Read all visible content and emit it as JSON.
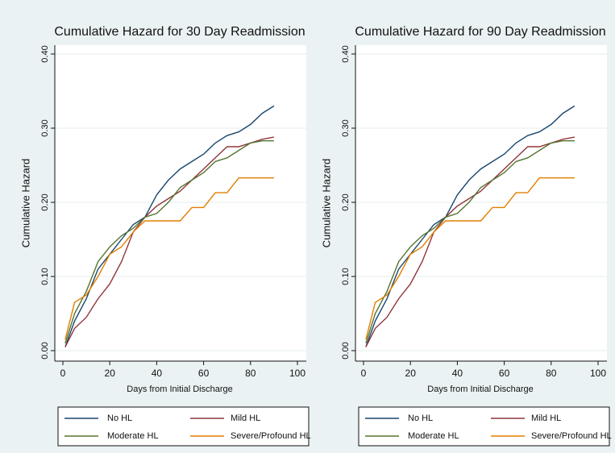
{
  "chart_data": [
    {
      "type": "line",
      "title": "Cumulative Hazard for 30 Day Readmission",
      "x_label": "Days from Initial Discharge",
      "y_label": "Cumulative Hazard",
      "x": [
        1,
        5,
        10,
        15,
        20,
        25,
        30,
        35,
        40,
        45,
        50,
        55,
        60,
        65,
        70,
        75,
        80,
        85,
        90
      ],
      "series": [
        {
          "name": "No HL",
          "color": "#1a476f",
          "values": [
            0.005,
            0.04,
            0.07,
            0.11,
            0.13,
            0.15,
            0.17,
            0.18,
            0.21,
            0.23,
            0.245,
            0.255,
            0.265,
            0.28,
            0.29,
            0.295,
            0.305,
            0.32,
            0.33
          ]
        },
        {
          "name": "Mild HL",
          "color": "#90353b",
          "values": [
            0.005,
            0.03,
            0.045,
            0.07,
            0.09,
            0.12,
            0.16,
            0.18,
            0.195,
            0.205,
            0.215,
            0.23,
            0.245,
            0.26,
            0.275,
            0.275,
            0.28,
            0.285,
            0.288
          ]
        },
        {
          "name": "Moderate HL",
          "color": "#55752f",
          "values": [
            0.01,
            0.05,
            0.08,
            0.12,
            0.14,
            0.155,
            0.165,
            0.18,
            0.185,
            0.2,
            0.22,
            0.23,
            0.24,
            0.255,
            0.26,
            0.27,
            0.28,
            0.283,
            0.283
          ]
        },
        {
          "name": "Severe/Profound HL",
          "color": "#e37e00",
          "values": [
            0.015,
            0.065,
            0.075,
            0.1,
            0.13,
            0.14,
            0.16,
            0.175,
            0.175,
            0.175,
            0.175,
            0.193,
            0.193,
            0.213,
            0.213,
            0.233,
            0.233,
            0.233,
            0.233
          ]
        }
      ],
      "xlim": [
        0,
        100
      ],
      "xticks": [
        0,
        20,
        40,
        60,
        80,
        100
      ],
      "ylim": [
        0,
        0.4
      ],
      "yticks": [
        {
          "value": 0,
          "label": "0.00"
        },
        {
          "value": 0.1,
          "label": "0.10"
        },
        {
          "value": 0.2,
          "label": "0.20"
        },
        {
          "value": 0.3,
          "label": "0.30"
        },
        {
          "value": 0.4,
          "label": "0.40"
        }
      ],
      "grid": true,
      "legend": "bottom"
    },
    {
      "type": "line",
      "title": "Cumulative Hazard for 90 Day Readmission",
      "x_label": "Days from Initial Discharge",
      "y_label": "Cumulative Hazard",
      "x": [
        1,
        5,
        10,
        15,
        20,
        25,
        30,
        35,
        40,
        45,
        50,
        55,
        60,
        65,
        70,
        75,
        80,
        85,
        90
      ],
      "series": [
        {
          "name": "No HL",
          "color": "#1a476f",
          "values": [
            0.005,
            0.04,
            0.07,
            0.11,
            0.13,
            0.15,
            0.17,
            0.18,
            0.21,
            0.23,
            0.245,
            0.255,
            0.265,
            0.28,
            0.29,
            0.295,
            0.305,
            0.32,
            0.33
          ]
        },
        {
          "name": "Mild HL",
          "color": "#90353b",
          "values": [
            0.005,
            0.03,
            0.045,
            0.07,
            0.09,
            0.12,
            0.16,
            0.18,
            0.195,
            0.205,
            0.215,
            0.23,
            0.245,
            0.26,
            0.275,
            0.275,
            0.28,
            0.285,
            0.288
          ]
        },
        {
          "name": "Moderate HL",
          "color": "#55752f",
          "values": [
            0.01,
            0.05,
            0.08,
            0.12,
            0.14,
            0.155,
            0.165,
            0.18,
            0.185,
            0.2,
            0.22,
            0.23,
            0.24,
            0.255,
            0.26,
            0.27,
            0.28,
            0.283,
            0.283
          ]
        },
        {
          "name": "Severe/Profound HL",
          "color": "#e37e00",
          "values": [
            0.015,
            0.065,
            0.075,
            0.1,
            0.13,
            0.14,
            0.16,
            0.175,
            0.175,
            0.175,
            0.175,
            0.193,
            0.193,
            0.213,
            0.213,
            0.233,
            0.233,
            0.233,
            0.233
          ]
        }
      ],
      "xlim": [
        0,
        100
      ],
      "xticks": [
        0,
        20,
        40,
        60,
        80,
        100
      ],
      "ylim": [
        0,
        0.4
      ],
      "yticks": [
        {
          "value": 0,
          "label": "0.00"
        },
        {
          "value": 0.1,
          "label": "0.10"
        },
        {
          "value": 0.2,
          "label": "0.20"
        },
        {
          "value": 0.3,
          "label": "0.30"
        },
        {
          "value": 0.4,
          "label": "0.40"
        }
      ],
      "grid": true,
      "legend": "bottom"
    }
  ]
}
